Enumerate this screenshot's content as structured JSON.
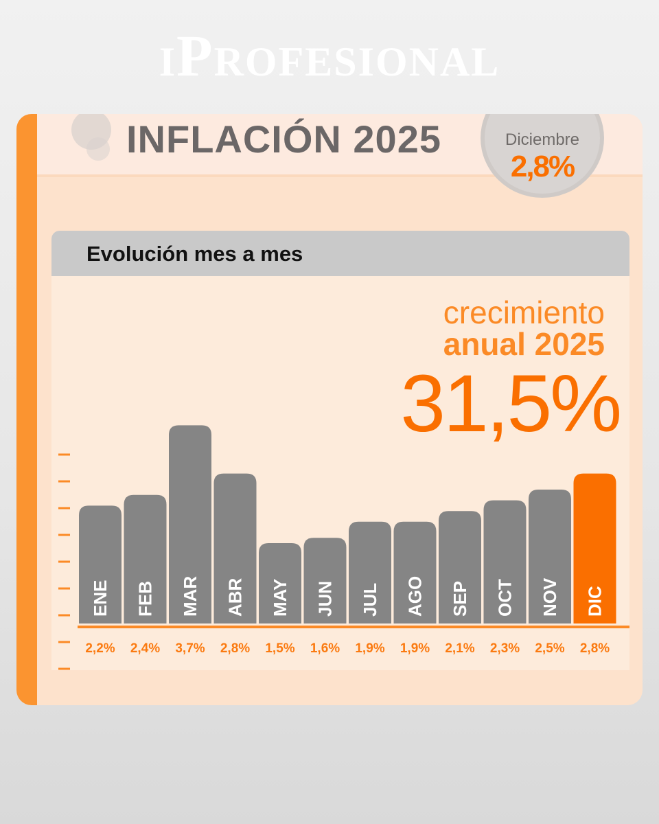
{
  "brand": "iProfesional",
  "header": {
    "title": "INFLACIÓN 2025",
    "month_label": "Diciembre",
    "month_value": "2,8%"
  },
  "panel": {
    "title": "Evolución mes a mes",
    "growth_line1": "crecimiento",
    "growth_line2": "anual 2025",
    "growth_value": "31,5%"
  },
  "colors": {
    "accent": "#fa6f00",
    "bar": "#858585",
    "highlight": "#fa6f00"
  },
  "chart_data": {
    "type": "bar",
    "categories": [
      "ENE",
      "FEB",
      "MAR",
      "ABR",
      "MAY",
      "JUN",
      "JUL",
      "AGO",
      "SEP",
      "OCT",
      "NOV",
      "DIC"
    ],
    "values": [
      2.2,
      2.4,
      3.7,
      2.8,
      1.5,
      1.6,
      1.9,
      1.9,
      2.1,
      2.3,
      2.5,
      2.8
    ],
    "value_labels": [
      "2,2%",
      "2,4%",
      "3,7%",
      "2,8%",
      "1,5%",
      "1,6%",
      "1,9%",
      "1,9%",
      "2,1%",
      "2,3%",
      "2,5%",
      "2,8%"
    ],
    "highlight_index": 11,
    "title": "Evolución mes a mes",
    "xlabel": "",
    "ylabel": "",
    "ylim": [
      0,
      4.5
    ],
    "grid": false
  }
}
